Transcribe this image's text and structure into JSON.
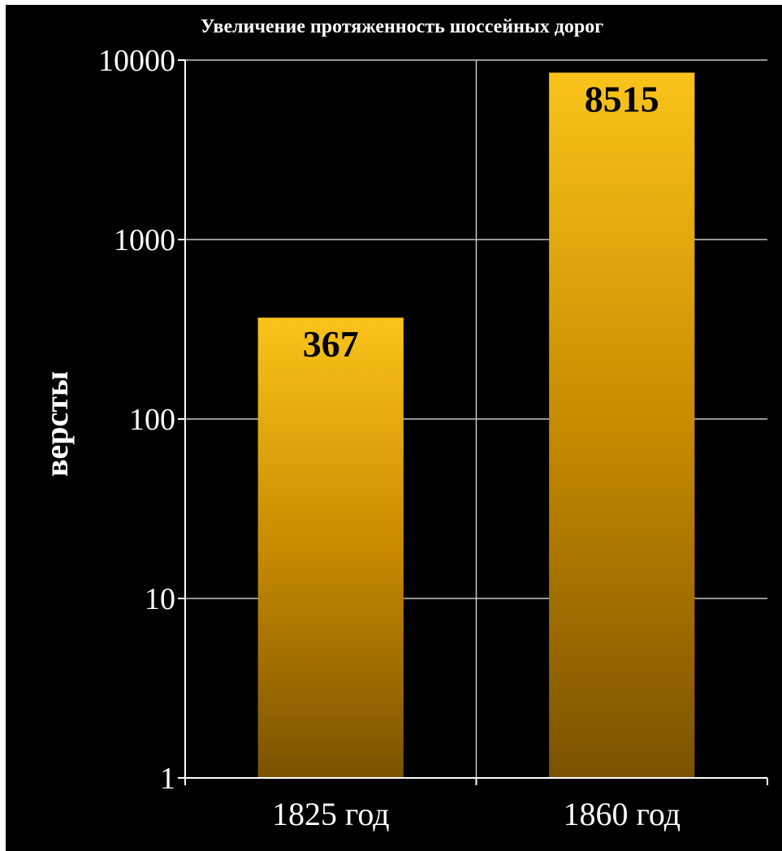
{
  "chart_data": {
    "type": "bar",
    "title": "Увеличение протяженность шоссейных дорог",
    "ylabel": "версты",
    "xlabel": "",
    "yscale": "log",
    "ylim": [
      1,
      10000
    ],
    "yticks": [
      "1",
      "10",
      "100",
      "1000",
      "10000"
    ],
    "grid": true,
    "categories": [
      "1825 год",
      "1860 год"
    ],
    "values": [
      367,
      8515
    ],
    "data_labels": [
      "367",
      "8515"
    ],
    "bar_color_top": "#fac31a",
    "bar_color_bottom": "#7a5200"
  }
}
